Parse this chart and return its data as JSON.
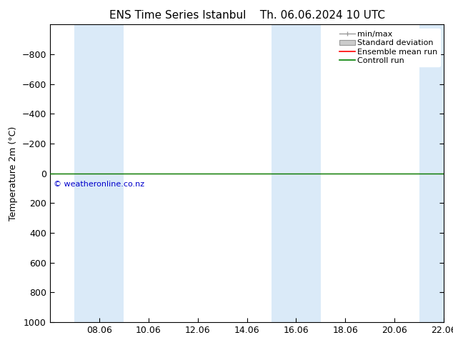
{
  "title": "ENS Time Series Istanbul",
  "title2": "Th. 06.06.2024 10 UTC",
  "ylabel": "Temperature 2m (°C)",
  "copyright_text": "© weatheronline.co.nz",
  "ylim_bottom": 1000,
  "ylim_top": -1000,
  "yticks": [
    -800,
    -600,
    -400,
    -200,
    0,
    200,
    400,
    600,
    800,
    1000
  ],
  "x_labels": [
    "08.06",
    "10.06",
    "12.06",
    "14.06",
    "16.06",
    "18.06",
    "20.06",
    "22.06"
  ],
  "x_tick_positions": [
    2,
    4,
    6,
    8,
    10,
    12,
    14,
    16
  ],
  "xlim": [
    0,
    16
  ],
  "shaded_bands": [
    {
      "x_start": 1.0,
      "x_end": 3.0,
      "color": "#daeaf8"
    },
    {
      "x_start": 9.0,
      "x_end": 11.0,
      "color": "#daeaf8"
    },
    {
      "x_start": 15.0,
      "x_end": 16.0,
      "color": "#daeaf8"
    }
  ],
  "line_y": 0,
  "line_color_green": "#008000",
  "line_color_red": "#ff0000",
  "background_color": "#ffffff",
  "plot_bg_color": "#ffffff",
  "legend_labels": [
    "min/max",
    "Standard deviation",
    "Ensemble mean run",
    "Controll run"
  ],
  "minmax_color": "#999999",
  "std_fill_color": "#cccccc",
  "std_edge_color": "#999999",
  "font_size_title": 11,
  "font_size_axis": 9,
  "font_size_legend": 8,
  "font_size_copyright": 8,
  "font_family": "DejaVu Sans"
}
